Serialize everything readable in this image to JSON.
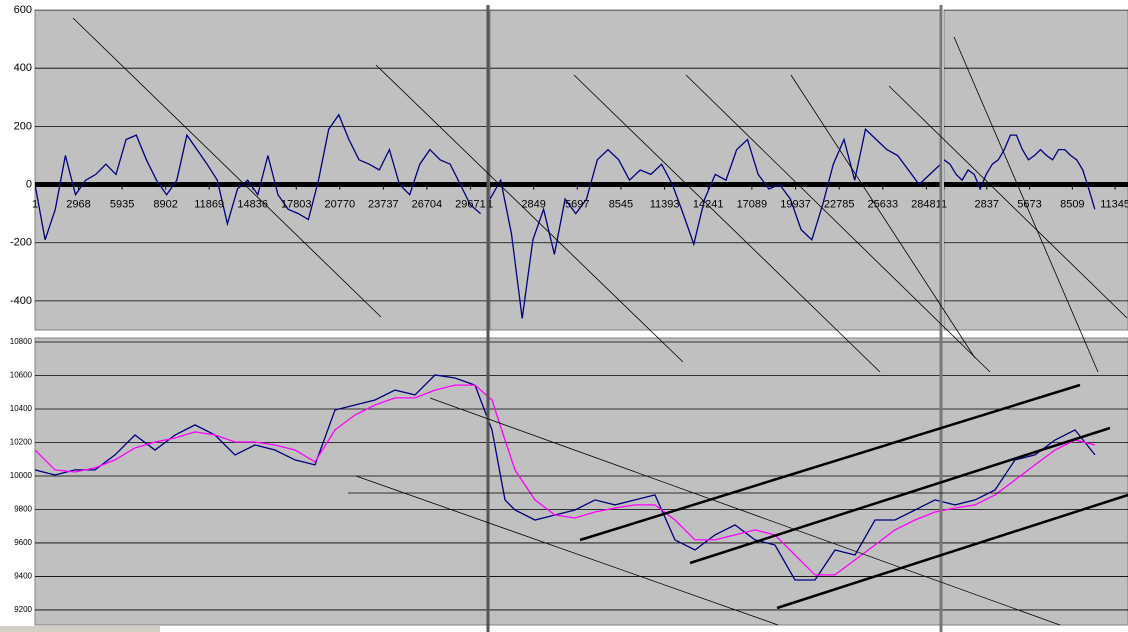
{
  "chart_data": [
    {
      "type": "line",
      "color": "#000080",
      "ylim": [
        -500,
        600
      ],
      "yticks": [
        600,
        400,
        200,
        0,
        -200,
        -400
      ],
      "xlim": [
        1,
        30800
      ],
      "xticks": [
        1,
        2968,
        5935,
        8902,
        11869,
        14836,
        17803,
        20770,
        23737,
        26704,
        29671
      ],
      "x": [
        1,
        691,
        1381,
        2071,
        2761,
        3451,
        4141,
        4831,
        5521,
        6211,
        6901,
        7591,
        8281,
        8971,
        9661,
        10351,
        11041,
        11731,
        12421,
        13111,
        13801,
        14491,
        15181,
        15871,
        16561,
        17251,
        17941,
        18631,
        19321,
        20011,
        20701,
        21391,
        22081,
        22771,
        23461,
        24151,
        24841,
        25531,
        26221,
        26911,
        27601,
        28291,
        28981,
        29671,
        30361
      ],
      "values": [
        0,
        -190,
        -85,
        100,
        -35,
        15,
        35,
        70,
        35,
        155,
        170,
        85,
        15,
        -35,
        15,
        170,
        120,
        70,
        15,
        -135,
        -15,
        15,
        -35,
        100,
        -35,
        -85,
        -100,
        -120,
        15,
        190,
        240,
        155,
        85,
        70,
        50,
        120,
        0,
        -35,
        70,
        120,
        85,
        70,
        0,
        -70,
        -100
      ]
    },
    {
      "type": "line",
      "color": "#000080",
      "ylim": [
        -500,
        600
      ],
      "xlim": [
        1,
        29430
      ],
      "xticks": [
        1,
        2849,
        5697,
        8545,
        11393,
        14241,
        17089,
        19937,
        22785,
        25633,
        28481
      ],
      "x": [
        1,
        701,
        1401,
        2101,
        2801,
        3501,
        4201,
        4901,
        5601,
        6301,
        7001,
        7701,
        8401,
        9101,
        9801,
        10501,
        11201,
        11901,
        12601,
        13301,
        14001,
        14701,
        15401,
        16101,
        16801,
        17501,
        18201,
        18901,
        19601,
        20301,
        21001,
        21701,
        22401,
        23101,
        23801,
        24501,
        25201,
        25901,
        26601,
        27301,
        28001,
        28701,
        29401
      ],
      "values": [
        -50,
        15,
        -170,
        -460,
        -190,
        -85,
        -240,
        -50,
        -100,
        -50,
        85,
        120,
        85,
        15,
        50,
        35,
        70,
        0,
        -100,
        -205,
        -50,
        35,
        15,
        120,
        155,
        35,
        -15,
        0,
        -50,
        -155,
        -190,
        -70,
        70,
        155,
        15,
        190,
        155,
        120,
        100,
        50,
        0,
        35,
        70
      ]
    },
    {
      "type": "line",
      "color": "#000080",
      "ylim": [
        -500,
        600
      ],
      "xlim": [
        1,
        12200
      ],
      "xticks": [
        1,
        2837,
        5673,
        8509,
        11345
      ],
      "x": [
        1,
        401,
        801,
        1201,
        1601,
        2001,
        2401,
        2801,
        3201,
        3601,
        4001,
        4401,
        4801,
        5201,
        5601,
        6001,
        6401,
        6801,
        7201,
        7601,
        8001,
        8401,
        8801,
        9201,
        9601,
        10001
      ],
      "values": [
        85,
        70,
        35,
        15,
        50,
        35,
        -15,
        35,
        70,
        85,
        120,
        170,
        170,
        120,
        85,
        100,
        120,
        100,
        85,
        120,
        120,
        100,
        85,
        50,
        -15,
        -85
      ]
    },
    {
      "type": "line",
      "ylim": [
        9110,
        10824
      ],
      "yticks": [
        10800,
        10600,
        10400,
        10200,
        10000,
        9800,
        9600,
        9400,
        9200
      ],
      "xlim": [
        0,
        1093
      ],
      "x": [
        0,
        20,
        40,
        60,
        80,
        100,
        120,
        140,
        160,
        180,
        200,
        220,
        240,
        260,
        280,
        300,
        320,
        340,
        360,
        380,
        400,
        420,
        440,
        457,
        470,
        480,
        500,
        520,
        540,
        560,
        580,
        600,
        620,
        640,
        660,
        680,
        700,
        720,
        740,
        760,
        780,
        800,
        820,
        840,
        860,
        880,
        900,
        920,
        940,
        960,
        980,
        1000,
        1020,
        1040,
        1060
      ],
      "series": [
        {
          "color": "#000080",
          "values": [
            10036,
            10006,
            10036,
            10036,
            10126,
            10245,
            10155,
            10245,
            10305,
            10245,
            10126,
            10185,
            10155,
            10096,
            10066,
            10394,
            10424,
            10454,
            10513,
            10484,
            10603,
            10585,
            10543,
            10275,
            9857,
            9797,
            9737,
            9767,
            9797,
            9857,
            9827,
            9857,
            9887,
            9618,
            9558,
            9648,
            9708,
            9618,
            9588,
            9379,
            9379,
            9558,
            9528,
            9737,
            9737,
            9797,
            9857,
            9827,
            9857,
            9916,
            10096,
            10126,
            10215,
            10275,
            10126
          ]
        },
        {
          "color": "#ff00ff",
          "values": [
            10155,
            10036,
            10024,
            10048,
            10096,
            10167,
            10203,
            10227,
            10263,
            10245,
            10203,
            10203,
            10185,
            10155,
            10084,
            10275,
            10364,
            10424,
            10466,
            10466,
            10513,
            10543,
            10543,
            10454,
            10215,
            10036,
            9857,
            9767,
            9749,
            9785,
            9809,
            9827,
            9827,
            9737,
            9618,
            9618,
            9648,
            9678,
            9648,
            9528,
            9409,
            9409,
            9499,
            9588,
            9678,
            9737,
            9785,
            9809,
            9827,
            9887,
            9976,
            10066,
            10155,
            10215,
            10185
          ]
        }
      ]
    }
  ]
}
